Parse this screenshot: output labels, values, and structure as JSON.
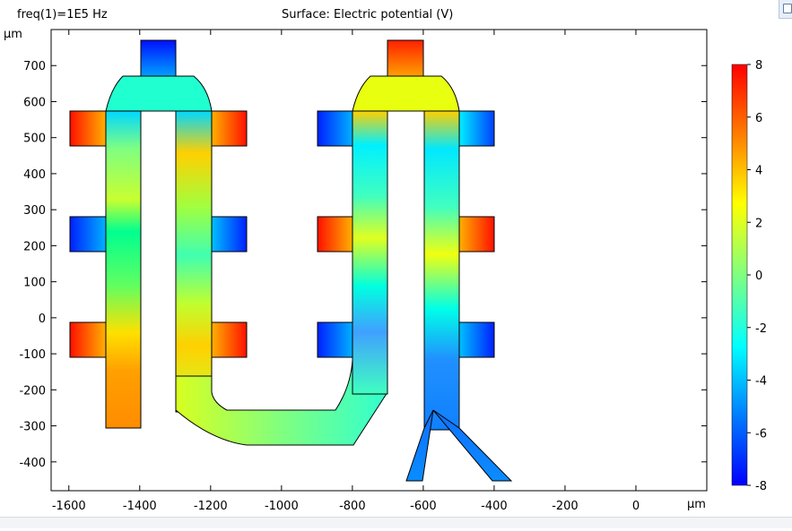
{
  "header": {
    "left_title": "freq(1)=1E5 Hz",
    "center_title": "Surface: Electric potential (V)"
  },
  "chart_data": {
    "type": "surface",
    "title": "Surface: Electric potential (V)",
    "subtitle": "freq(1)=1E5 Hz",
    "xunit": "μm",
    "yunit": "μm",
    "xlim": [
      -1650,
      200
    ],
    "ylim": [
      -480,
      800
    ],
    "xticks": [
      -1600,
      -1400,
      -1200,
      -1000,
      -800,
      -600,
      -400,
      -200,
      0
    ],
    "yticks": [
      -400,
      -300,
      -200,
      -100,
      0,
      100,
      200,
      300,
      400,
      500,
      600,
      700
    ],
    "colorbar": {
      "range": [
        -8,
        8
      ],
      "ticks": [
        8,
        6,
        4,
        2,
        0,
        -2,
        -4,
        -6,
        -8
      ],
      "colormap": "rainbow",
      "colors": [
        "#0000ff",
        "#0080ff",
        "#00ffff",
        "#80ff80",
        "#ffff00",
        "#ff8000",
        "#ff0000"
      ]
    },
    "electrode_potentials": [
      {
        "part": "left-comb-top-pad",
        "value": -7.5
      },
      {
        "part": "left-comb-arm-1-upper",
        "value": 7
      },
      {
        "part": "left-comb-arm-1-middle",
        "value": -7
      },
      {
        "part": "left-comb-arm-1-lower",
        "value": 7
      },
      {
        "part": "left-comb-arm-2-upper",
        "value": 7
      },
      {
        "part": "left-comb-arm-2-middle",
        "value": -6
      },
      {
        "part": "left-comb-arm-2-lower",
        "value": 7
      },
      {
        "part": "right-comb-top-pad",
        "value": 7.5
      },
      {
        "part": "right-comb-arm-1-upper",
        "value": -7
      },
      {
        "part": "right-comb-arm-1-middle",
        "value": 7
      },
      {
        "part": "right-comb-arm-1-lower",
        "value": -7
      },
      {
        "part": "right-comb-arm-2-upper",
        "value": -7
      },
      {
        "part": "right-comb-arm-2-middle",
        "value": 7
      },
      {
        "part": "right-comb-arm-2-lower",
        "value": -7
      },
      {
        "part": "channel-outlet",
        "value": -5
      }
    ]
  }
}
